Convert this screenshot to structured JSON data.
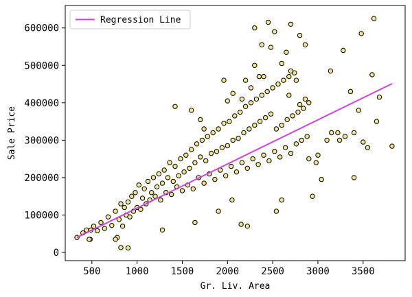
{
  "chart_data": {
    "type": "scatter",
    "title": "",
    "xlabel": "Gr. Liv. Area",
    "ylabel": "Sale Price",
    "xlim": [
      205,
      3965
    ],
    "ylim": [
      -22000,
      660000
    ],
    "x_ticks": [
      500,
      1000,
      1500,
      2000,
      2500,
      3000,
      3500
    ],
    "y_ticks": [
      0,
      100000,
      200000,
      300000,
      400000,
      500000,
      600000
    ],
    "x_tick_labels": [
      "500",
      "1000",
      "1500",
      "2000",
      "2500",
      "3000",
      "3500"
    ],
    "y_tick_labels": [
      "0",
      "100000",
      "200000",
      "300000",
      "400000",
      "500000",
      "600000"
    ],
    "grid": false,
    "legend": {
      "position": "top-left",
      "entries": [
        "Regression Line"
      ]
    },
    "colors": {
      "points": "#f0e68c",
      "point_edge": "#000000",
      "regression_line": "#cc44dd"
    },
    "points_sample_note_excluded": true,
    "series": [
      {
        "name": "Regression Line",
        "type": "line",
        "x": [
          334,
          3820
        ],
        "y": [
          40000,
          451000
        ]
      },
      {
        "type": "scatter",
        "x": [
          334,
          400,
          440,
          480,
          520,
          560,
          600,
          640,
          680,
          720,
          760,
          800,
          820,
          840,
          860,
          880,
          900,
          920,
          940,
          960,
          980,
          1000,
          1020,
          1040,
          1060,
          1080,
          1100,
          1120,
          1140,
          1160,
          1180,
          1200,
          1220,
          1240,
          1260,
          1280,
          1300,
          1320,
          1340,
          1360,
          1380,
          1400,
          1420,
          1440,
          1460,
          1480,
          1500,
          1520,
          1540,
          1560,
          1580,
          1600,
          1620,
          1640,
          1660,
          1680,
          1700,
          1720,
          1740,
          1760,
          1780,
          1800,
          1820,
          1840,
          1860,
          1880,
          1900,
          1920,
          1940,
          1960,
          1980,
          2000,
          2020,
          2040,
          2060,
          2080,
          2100,
          2120,
          2140,
          2160,
          2180,
          2200,
          2220,
          2240,
          2260,
          2280,
          2300,
          2320,
          2340,
          2360,
          2380,
          2400,
          2420,
          2440,
          2460,
          2480,
          2500,
          2520,
          2540,
          2560,
          2580,
          2600,
          2620,
          2640,
          2660,
          2680,
          2700,
          2720,
          2740,
          2760,
          2780,
          2800,
          2820,
          2840,
          2860,
          2880,
          2900,
          2940,
          2980,
          3040,
          3100,
          3140,
          3220,
          3280,
          3360,
          3400,
          3450,
          3480,
          3500,
          3600,
          3620,
          3680,
          3820,
          2300,
          2380,
          2450,
          2480,
          2520,
          2600,
          2650,
          2700,
          2760,
          2800,
          2860,
          2300,
          2350,
          2400,
          2260,
          2200,
          2700,
          2680,
          2160,
          2060,
          2000,
          1960,
          1420,
          1600,
          1700,
          1740,
          900,
          820,
          780,
          760,
          470,
          490,
          1280,
          1640,
          1900,
          2050,
          2150,
          2220,
          2540,
          2600,
          2900,
          3000,
          3150,
          3240,
          3300,
          3400,
          3550,
          3650
        ],
        "y": [
          40000,
          52000,
          60000,
          35000,
          70000,
          58000,
          80000,
          64000,
          95000,
          72000,
          110000,
          88000,
          130000,
          70000,
          120000,
          100000,
          135000,
          95000,
          150000,
          110000,
          160000,
          120000,
          180000,
          115000,
          145000,
          170000,
          130000,
          190000,
          140000,
          160000,
          200000,
          150000,
          175000,
          210000,
          140000,
          185000,
          220000,
          160000,
          200000,
          240000,
          155000,
          190000,
          230000,
          175000,
          205000,
          250000,
          165000,
          215000,
          260000,
          180000,
          225000,
          275000,
          170000,
          240000,
          290000,
          200000,
          255000,
          300000,
          185000,
          245000,
          310000,
          210000,
          265000,
          320000,
          195000,
          270000,
          330000,
          220000,
          280000,
          345000,
          205000,
          285000,
          350000,
          230000,
          300000,
          365000,
          215000,
          305000,
          375000,
          240000,
          320000,
          390000,
          225000,
          330000,
          400000,
          250000,
          340000,
          410000,
          235000,
          350000,
          420000,
          260000,
          360000,
          430000,
          245000,
          370000,
          440000,
          270000,
          330000,
          450000,
          255000,
          340000,
          460000,
          280000,
          355000,
          470000,
          265000,
          365000,
          480000,
          290000,
          375000,
          395000,
          300000,
          385000,
          410000,
          310000,
          400000,
          150000,
          240000,
          195000,
          300000,
          485000,
          320000,
          540000,
          430000,
          200000,
          380000,
          585000,
          295000,
          475000,
          625000,
          415000,
          284000,
          600000,
          555000,
          615000,
          548000,
          590000,
          505000,
          535000,
          610000,
          460000,
          580000,
          555000,
          500000,
          470000,
          470000,
          440000,
          460000,
          485000,
          420000,
          410000,
          425000,
          405000,
          460000,
          390000,
          380000,
          355000,
          330000,
          12000,
          13000,
          40000,
          35000,
          35000,
          60000,
          60000,
          80000,
          110000,
          140000,
          75000,
          70000,
          110000,
          140000,
          250000,
          260000,
          320000,
          300000,
          310000,
          320000,
          280000,
          350000
        ]
      }
    ]
  }
}
